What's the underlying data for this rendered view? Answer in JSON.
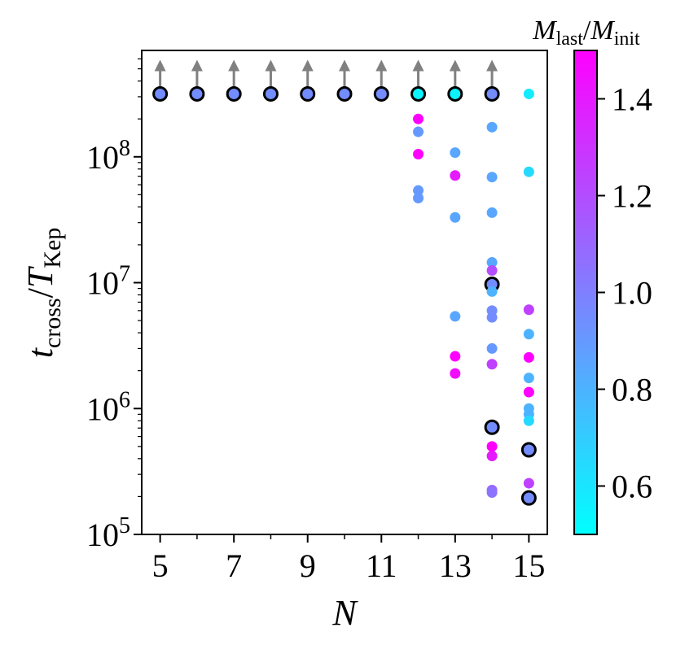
{
  "chart_data": {
    "type": "scatter",
    "x_axis": {
      "label": "N",
      "range": [
        4.5,
        15.5
      ],
      "ticks": [
        5,
        7,
        9,
        11,
        13,
        15
      ],
      "tick_labels": [
        "5",
        "7",
        "9",
        "11",
        "13",
        "15"
      ],
      "minor_ticks": [
        6,
        8,
        10,
        12,
        14
      ]
    },
    "y_axis": {
      "label_main": "t",
      "label_main_sub": "cross",
      "label_sep": "/",
      "label_denom": "T",
      "label_denom_sub": "Kep",
      "scale": "log",
      "range": [
        100000,
        700000000
      ],
      "ticks": [
        100000,
        1000000,
        10000000,
        100000000
      ],
      "tick_labels": [
        {
          "base": "10",
          "exp": "5"
        },
        {
          "base": "10",
          "exp": "6"
        },
        {
          "base": "10",
          "exp": "7"
        },
        {
          "base": "10",
          "exp": "8"
        }
      ]
    },
    "colorbar": {
      "label_num": "M",
      "label_num_sub": "last",
      "label_sep": "/",
      "label_den": "M",
      "label_den_sub": "init",
      "range": [
        0.5,
        1.5
      ],
      "ticks": [
        0.6,
        0.8,
        1.0,
        1.2,
        1.4
      ],
      "tick_labels": [
        "0.6",
        "0.8",
        "1.0",
        "1.2",
        "1.4"
      ],
      "colormap": "cool",
      "color_low": "#00ffff",
      "color_high": "#ff00ff"
    },
    "lower_limit_arrow_color": "#808080",
    "outlined_marker_edge_color": "#000000",
    "points": [
      {
        "x": 5,
        "y": 316000000,
        "c": 0.95,
        "outlined": true,
        "lower_limit": true
      },
      {
        "x": 6,
        "y": 316000000,
        "c": 0.95,
        "outlined": true,
        "lower_limit": true
      },
      {
        "x": 7,
        "y": 316000000,
        "c": 0.95,
        "outlined": true,
        "lower_limit": true
      },
      {
        "x": 8,
        "y": 316000000,
        "c": 0.95,
        "outlined": true,
        "lower_limit": true
      },
      {
        "x": 9,
        "y": 316000000,
        "c": 0.95,
        "outlined": true,
        "lower_limit": true
      },
      {
        "x": 10,
        "y": 316000000,
        "c": 0.95,
        "outlined": true,
        "lower_limit": true
      },
      {
        "x": 11,
        "y": 316000000,
        "c": 0.95,
        "outlined": true,
        "lower_limit": true
      },
      {
        "x": 12,
        "y": 316000000,
        "c": 0.55,
        "outlined": true,
        "lower_limit": true
      },
      {
        "x": 13,
        "y": 316000000,
        "c": 0.55,
        "outlined": true,
        "lower_limit": true
      },
      {
        "x": 14,
        "y": 316000000,
        "c": 0.95,
        "outlined": true,
        "lower_limit": true
      },
      {
        "x": 15,
        "y": 316000000,
        "c": 0.58,
        "outlined": false,
        "lower_limit": false
      },
      {
        "x": 12,
        "y": 200000000,
        "c": 1.5,
        "outlined": false,
        "lower_limit": false
      },
      {
        "x": 12,
        "y": 158000000,
        "c": 0.9,
        "outlined": false,
        "lower_limit": false
      },
      {
        "x": 12,
        "y": 105000000,
        "c": 1.5,
        "outlined": false,
        "lower_limit": false
      },
      {
        "x": 12,
        "y": 54000000,
        "c": 0.9,
        "outlined": false,
        "lower_limit": false
      },
      {
        "x": 12,
        "y": 47000000,
        "c": 0.9,
        "outlined": false,
        "lower_limit": false
      },
      {
        "x": 13,
        "y": 108000000,
        "c": 0.85,
        "outlined": false,
        "lower_limit": false
      },
      {
        "x": 13,
        "y": 71000000,
        "c": 1.4,
        "outlined": false,
        "lower_limit": false
      },
      {
        "x": 13,
        "y": 33000000,
        "c": 0.85,
        "outlined": false,
        "lower_limit": false
      },
      {
        "x": 13,
        "y": 5400000,
        "c": 0.85,
        "outlined": false,
        "lower_limit": false
      },
      {
        "x": 13,
        "y": 2600000,
        "c": 1.5,
        "outlined": false,
        "lower_limit": false
      },
      {
        "x": 13,
        "y": 1900000,
        "c": 1.45,
        "outlined": false,
        "lower_limit": false
      },
      {
        "x": 14,
        "y": 172000000,
        "c": 0.85,
        "outlined": false,
        "lower_limit": false
      },
      {
        "x": 14,
        "y": 69000000,
        "c": 0.85,
        "outlined": false,
        "lower_limit": false
      },
      {
        "x": 14,
        "y": 36000000,
        "c": 0.85,
        "outlined": false,
        "lower_limit": false
      },
      {
        "x": 14,
        "y": 14500000,
        "c": 0.85,
        "outlined": false,
        "lower_limit": false
      },
      {
        "x": 14,
        "y": 12500000,
        "c": 1.2,
        "outlined": false,
        "lower_limit": false
      },
      {
        "x": 14,
        "y": 9700000,
        "c": 0.95,
        "outlined": true,
        "lower_limit": false
      },
      {
        "x": 14,
        "y": 8500000,
        "c": 0.8,
        "outlined": false,
        "lower_limit": false
      },
      {
        "x": 14,
        "y": 6000000,
        "c": 0.95,
        "outlined": false,
        "lower_limit": false
      },
      {
        "x": 14,
        "y": 5300000,
        "c": 0.95,
        "outlined": false,
        "lower_limit": false
      },
      {
        "x": 14,
        "y": 3000000,
        "c": 0.9,
        "outlined": false,
        "lower_limit": false
      },
      {
        "x": 14,
        "y": 2250000,
        "c": 1.25,
        "outlined": false,
        "lower_limit": false
      },
      {
        "x": 14,
        "y": 710000,
        "c": 0.95,
        "outlined": true,
        "lower_limit": false
      },
      {
        "x": 14,
        "y": 500000,
        "c": 1.5,
        "outlined": false,
        "lower_limit": false
      },
      {
        "x": 14,
        "y": 420000,
        "c": 1.4,
        "outlined": false,
        "lower_limit": false
      },
      {
        "x": 14,
        "y": 225000,
        "c": 1.1,
        "outlined": false,
        "lower_limit": false
      },
      {
        "x": 14,
        "y": 215000,
        "c": 1.05,
        "outlined": false,
        "lower_limit": false
      },
      {
        "x": 15,
        "y": 76000000,
        "c": 0.65,
        "outlined": false,
        "lower_limit": false
      },
      {
        "x": 15,
        "y": 6100000,
        "c": 1.25,
        "outlined": false,
        "lower_limit": false
      },
      {
        "x": 15,
        "y": 3900000,
        "c": 0.8,
        "outlined": false,
        "lower_limit": false
      },
      {
        "x": 15,
        "y": 2550000,
        "c": 1.5,
        "outlined": false,
        "lower_limit": false
      },
      {
        "x": 15,
        "y": 1750000,
        "c": 0.8,
        "outlined": false,
        "lower_limit": false
      },
      {
        "x": 15,
        "y": 1350000,
        "c": 1.5,
        "outlined": false,
        "lower_limit": false
      },
      {
        "x": 15,
        "y": 1000000,
        "c": 0.8,
        "outlined": false,
        "lower_limit": false
      },
      {
        "x": 15,
        "y": 900000,
        "c": 0.8,
        "outlined": false,
        "lower_limit": false
      },
      {
        "x": 15,
        "y": 800000,
        "c": 0.65,
        "outlined": false,
        "lower_limit": false
      },
      {
        "x": 15,
        "y": 470000,
        "c": 0.95,
        "outlined": true,
        "lower_limit": false
      },
      {
        "x": 15,
        "y": 255000,
        "c": 1.25,
        "outlined": false,
        "lower_limit": false
      },
      {
        "x": 15,
        "y": 195000,
        "c": 0.95,
        "outlined": true,
        "lower_limit": false
      }
    ]
  }
}
